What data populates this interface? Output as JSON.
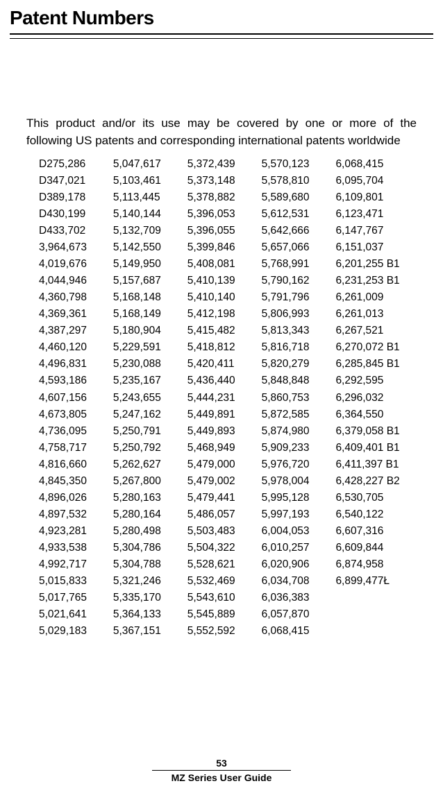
{
  "title": "Patent Numbers",
  "intro": "This product and/or its use may be covered by one or more of the following US patents and corresponding international patents worldwide",
  "footer": {
    "page": "53",
    "line": "MZ Series User Guide"
  },
  "patents": {
    "columns": [
      [
        "D275,286",
        "D347,021",
        "D389,178",
        "D430,199",
        "D433,702",
        "3,964,673",
        "4,019,676",
        "4,044,946",
        "4,360,798",
        "4,369,361",
        "4,387,297",
        "4,460,120",
        "4,496,831",
        "4,593,186",
        "4,607,156",
        "4,673,805",
        "4,736,095",
        "4,758,717",
        "4,816,660",
        "4,845,350",
        "4,896,026",
        "4,897,532",
        "4,923,281",
        "4,933,538",
        "4,992,717",
        "5,015,833",
        "5,017,765",
        "5,021,641",
        "5,029,183"
      ],
      [
        "5,047,617",
        "5,103,461",
        "5,113,445",
        "5,140,144",
        "5,132,709",
        "5,142,550",
        "5,149,950",
        "5,157,687",
        "5,168,148",
        "5,168,149",
        "5,180,904",
        "5,229,591",
        "5,230,088",
        "5,235,167",
        "5,243,655",
        "5,247,162",
        "5,250,791",
        "5,250,792",
        "5,262,627",
        "5,267,800",
        "5,280,163",
        "5,280,164",
        "5,280,498",
        "5,304,786",
        "5,304,788",
        "5,321,246",
        "5,335,170",
        "5,364,133",
        "5,367,151"
      ],
      [
        "5,372,439",
        "5,373,148",
        "5,378,882",
        "5,396,053",
        "5,396,055",
        "5,399,846",
        "5,408,081",
        "5,410,139",
        "5,410,140",
        "5,412,198",
        "5,415,482",
        "5,418,812",
        "5,420,411",
        "5,436,440",
        "5,444,231",
        "5,449,891",
        "5,449,893",
        "5,468,949",
        "5,479,000",
        "5,479,002",
        "5,479,441",
        "5,486,057",
        "5,503,483",
        "5,504,322",
        "5,528,621",
        "5,532,469",
        "5,543,610",
        "5,545,889",
        "5,552,592"
      ],
      [
        "5,570,123",
        "5,578,810",
        "5,589,680",
        "5,612,531",
        "5,642,666",
        "5,657,066",
        "5,768,991",
        "5,790,162",
        "5,791,796",
        "5,806,993",
        "5,813,343",
        "5,816,718",
        "5,820,279",
        "5,848,848",
        "5,860,753",
        "5,872,585",
        "5,874,980",
        "5,909,233",
        "5,976,720",
        "5,978,004",
        "5,995,128",
        "5,997,193",
        "6,004,053",
        "6,010,257",
        "6,020,906",
        "6,034,708",
        "6,036,383",
        "6,057,870",
        "6,068,415"
      ],
      [
        "6,068,415",
        "6,095,704",
        "6,109,801",
        "6,123,471",
        "6,147,767",
        "6,151,037",
        "6,201,255 B1",
        "6,231,253 B1",
        "6,261,009",
        "6,261,013",
        "6,267,521",
        "6,270,072 B1",
        "6,285,845 B1",
        "6,292,595",
        "6,296,032",
        "6,364,550",
        "6,379,058 B1",
        "6,409,401 B1",
        "6,411,397 B1",
        "6,428,227 B2",
        "6,530,705",
        "6,540,122",
        "6,607,316",
        "6,609,844",
        "6,874,958",
        "6,899,477Ł"
      ]
    ]
  },
  "style": {
    "title_fontsize": 28,
    "body_fontsize": 17,
    "cell_fontsize": 15.5,
    "background": "#ffffff",
    "text_color": "#000000"
  }
}
